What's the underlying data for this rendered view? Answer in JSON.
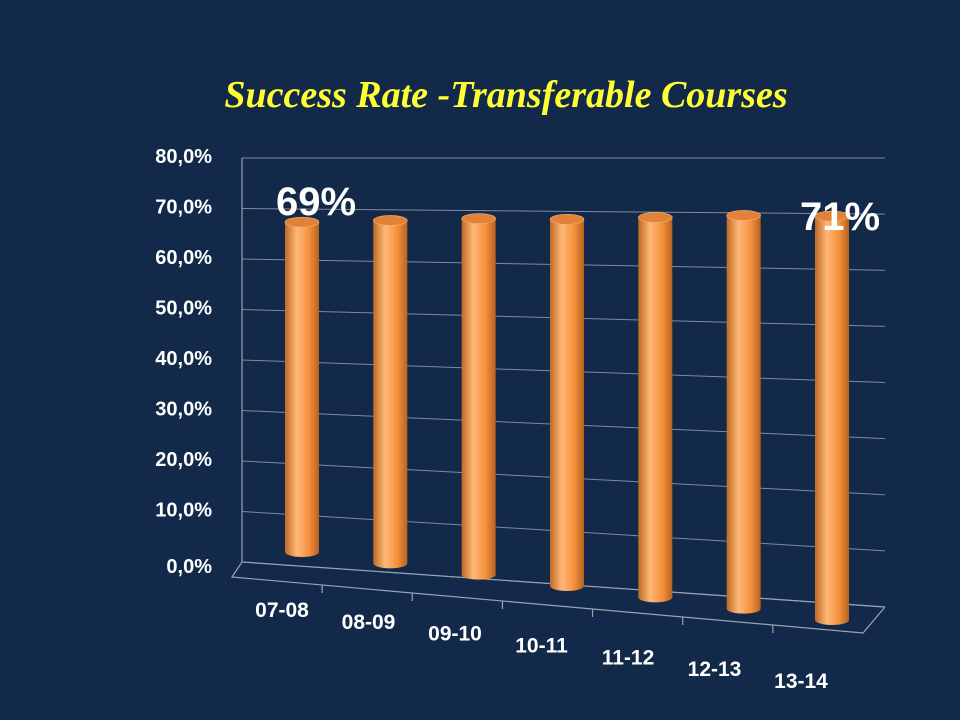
{
  "chart_data": {
    "type": "bar",
    "title": "Success Rate -Transferable Courses",
    "categories": [
      "07-08",
      "08-09",
      "09-10",
      "10-11",
      "11-12",
      "12-13",
      "13-14"
    ],
    "values": [
      69.0,
      69.5,
      70.0,
      70.0,
      70.5,
      71.0,
      71.0
    ],
    "ylim": [
      0,
      80
    ],
    "yticks": [
      "0,0%",
      "10,0%",
      "20,0%",
      "30,0%",
      "40,0%",
      "50,0%",
      "60,0%",
      "70,0%",
      "80,0%"
    ],
    "grid": true,
    "legend": "none",
    "style": "3d-cylinder",
    "annotations": [
      {
        "text": "69%",
        "category": "07-08"
      },
      {
        "text": "71%",
        "category": "13-14"
      }
    ],
    "colors": {
      "background": "#12294a",
      "bar_light": "#ffb878",
      "bar_mid": "#f5923e",
      "bar_dark": "#c06a24",
      "title": "#ffff33"
    }
  }
}
